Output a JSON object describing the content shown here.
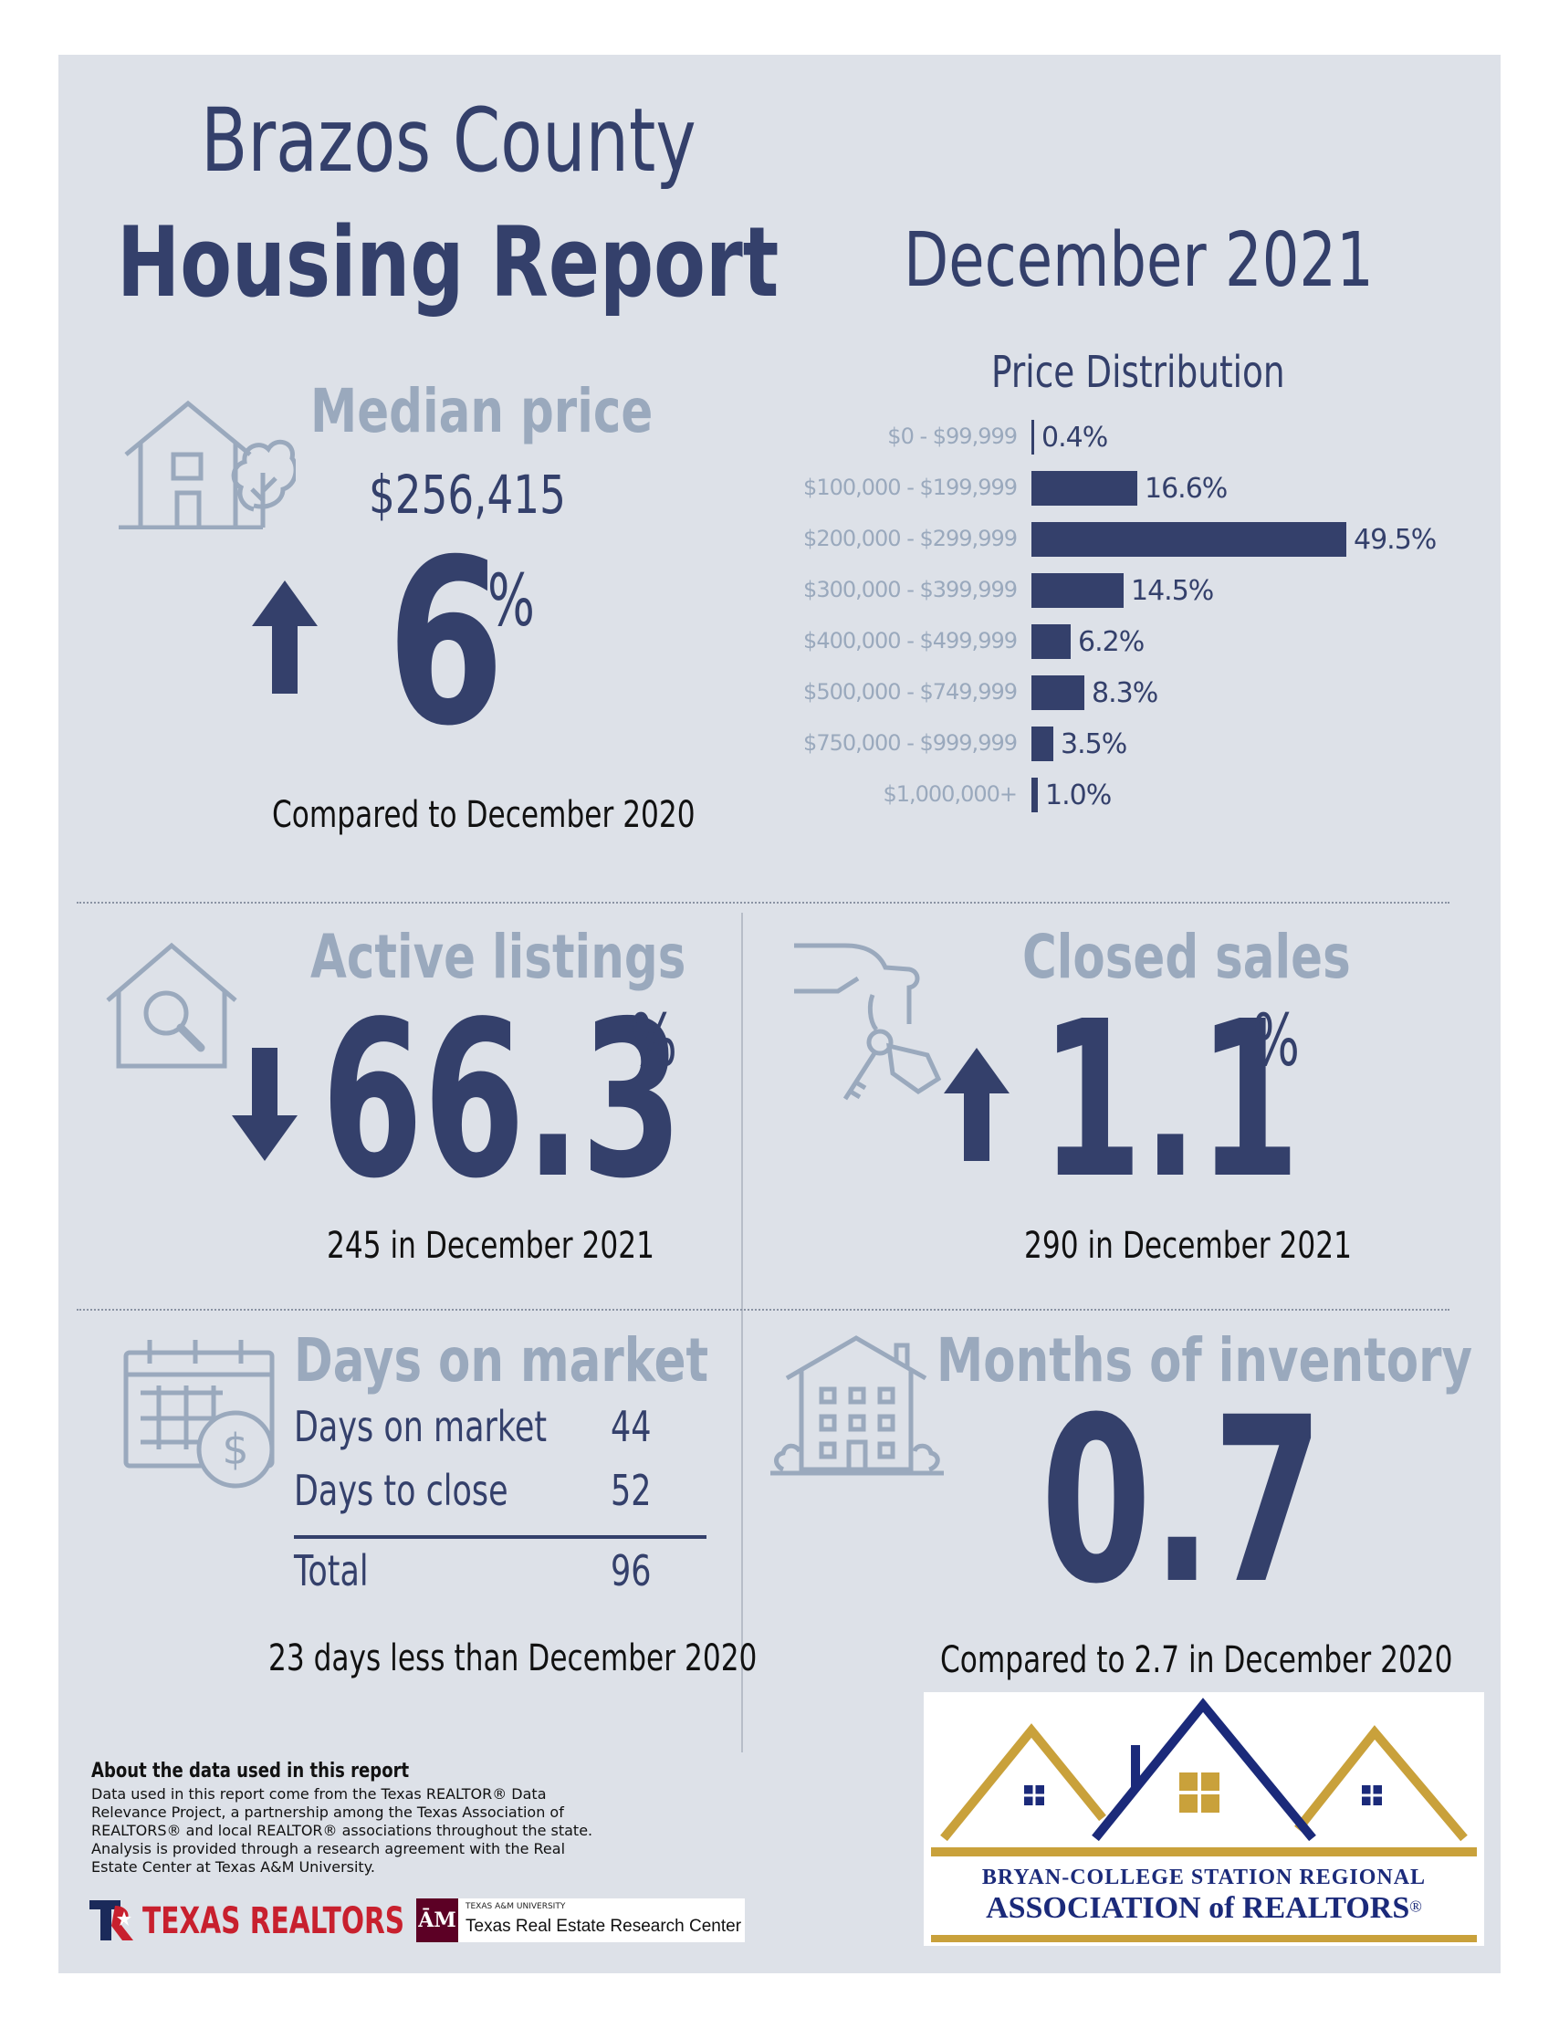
{
  "header": {
    "county": "Brazos County",
    "report": "Housing Report",
    "period": "December 2021"
  },
  "median_price": {
    "title": "Median price",
    "value": "$256,415",
    "change_number": "6",
    "change_unit": "%",
    "direction": "up",
    "comparison": "Compared to December 2020"
  },
  "price_distribution": {
    "title": "Price Distribution",
    "rows": [
      {
        "label": "$0 - $99,999",
        "value": "0.4%"
      },
      {
        "label": "$100,000 - $199,999",
        "value": "16.6%"
      },
      {
        "label": "$200,000 - $299,999",
        "value": "49.5%"
      },
      {
        "label": "$300,000 - $399,999",
        "value": "14.5%"
      },
      {
        "label": "$400,000 - $499,999",
        "value": "6.2%"
      },
      {
        "label": "$500,000 - $749,999",
        "value": "8.3%"
      },
      {
        "label": "$750,000 - $999,999",
        "value": "3.5%"
      },
      {
        "label": "$1,000,000+",
        "value": "1.0%"
      }
    ]
  },
  "chart_data": {
    "type": "bar",
    "title": "Price Distribution",
    "categories": [
      "$0 - $99,999",
      "$100,000 - $199,999",
      "$200,000 - $299,999",
      "$300,000 - $399,999",
      "$400,000 - $499,999",
      "$500,000 - $749,999",
      "$750,000 - $999,999",
      "$1,000,000+"
    ],
    "values": [
      0.4,
      16.6,
      49.5,
      14.5,
      6.2,
      8.3,
      3.5,
      1.0
    ],
    "orientation": "horizontal"
  },
  "active_listings": {
    "title": "Active listings",
    "change_number": "66.3",
    "change_unit": "%",
    "direction": "down",
    "detail": "245 in December 2021"
  },
  "closed_sales": {
    "title": "Closed sales",
    "change_number": "1.1",
    "change_unit": "%",
    "direction": "up",
    "detail": "290 in December 2021"
  },
  "days_on_market": {
    "title": "Days on market",
    "rows": [
      {
        "label": "Days on market",
        "value": "44"
      },
      {
        "label": "Days to close",
        "value": "52"
      }
    ],
    "total_label": "Total",
    "total_value": "96",
    "comparison": "23 days less than December 2020"
  },
  "months_inventory": {
    "title": "Months of inventory",
    "value": "0.7",
    "comparison": "Compared to 2.7 in December 2020"
  },
  "about": {
    "title": "About the data used in this report",
    "body": "Data used in this report come from the Texas REALTOR® Data Relevance Project, a partnership among the Texas Association of REALTORS® and local REALTOR® associations throughout the state. Analysis is provided through a research agreement with the Real Estate Center at Texas A&M University."
  },
  "logos": {
    "texas_realtors": "TEXAS REALTORS",
    "tamu_small": "TEXAS A&M UNIVERSITY",
    "tamu_center": "Texas Real Estate Research Center",
    "bcs_line1": "BRYAN-COLLEGE STATION REGIONAL",
    "bcs_line2": "ASSOCIATION of REALTORS",
    "bcs_reg": "®"
  },
  "colors": {
    "navy": "#34406b",
    "gray_blue": "#9aa9bd",
    "background": "#dde1e8",
    "gold": "#c9a13b",
    "dark_blue": "#1b2a7a"
  }
}
